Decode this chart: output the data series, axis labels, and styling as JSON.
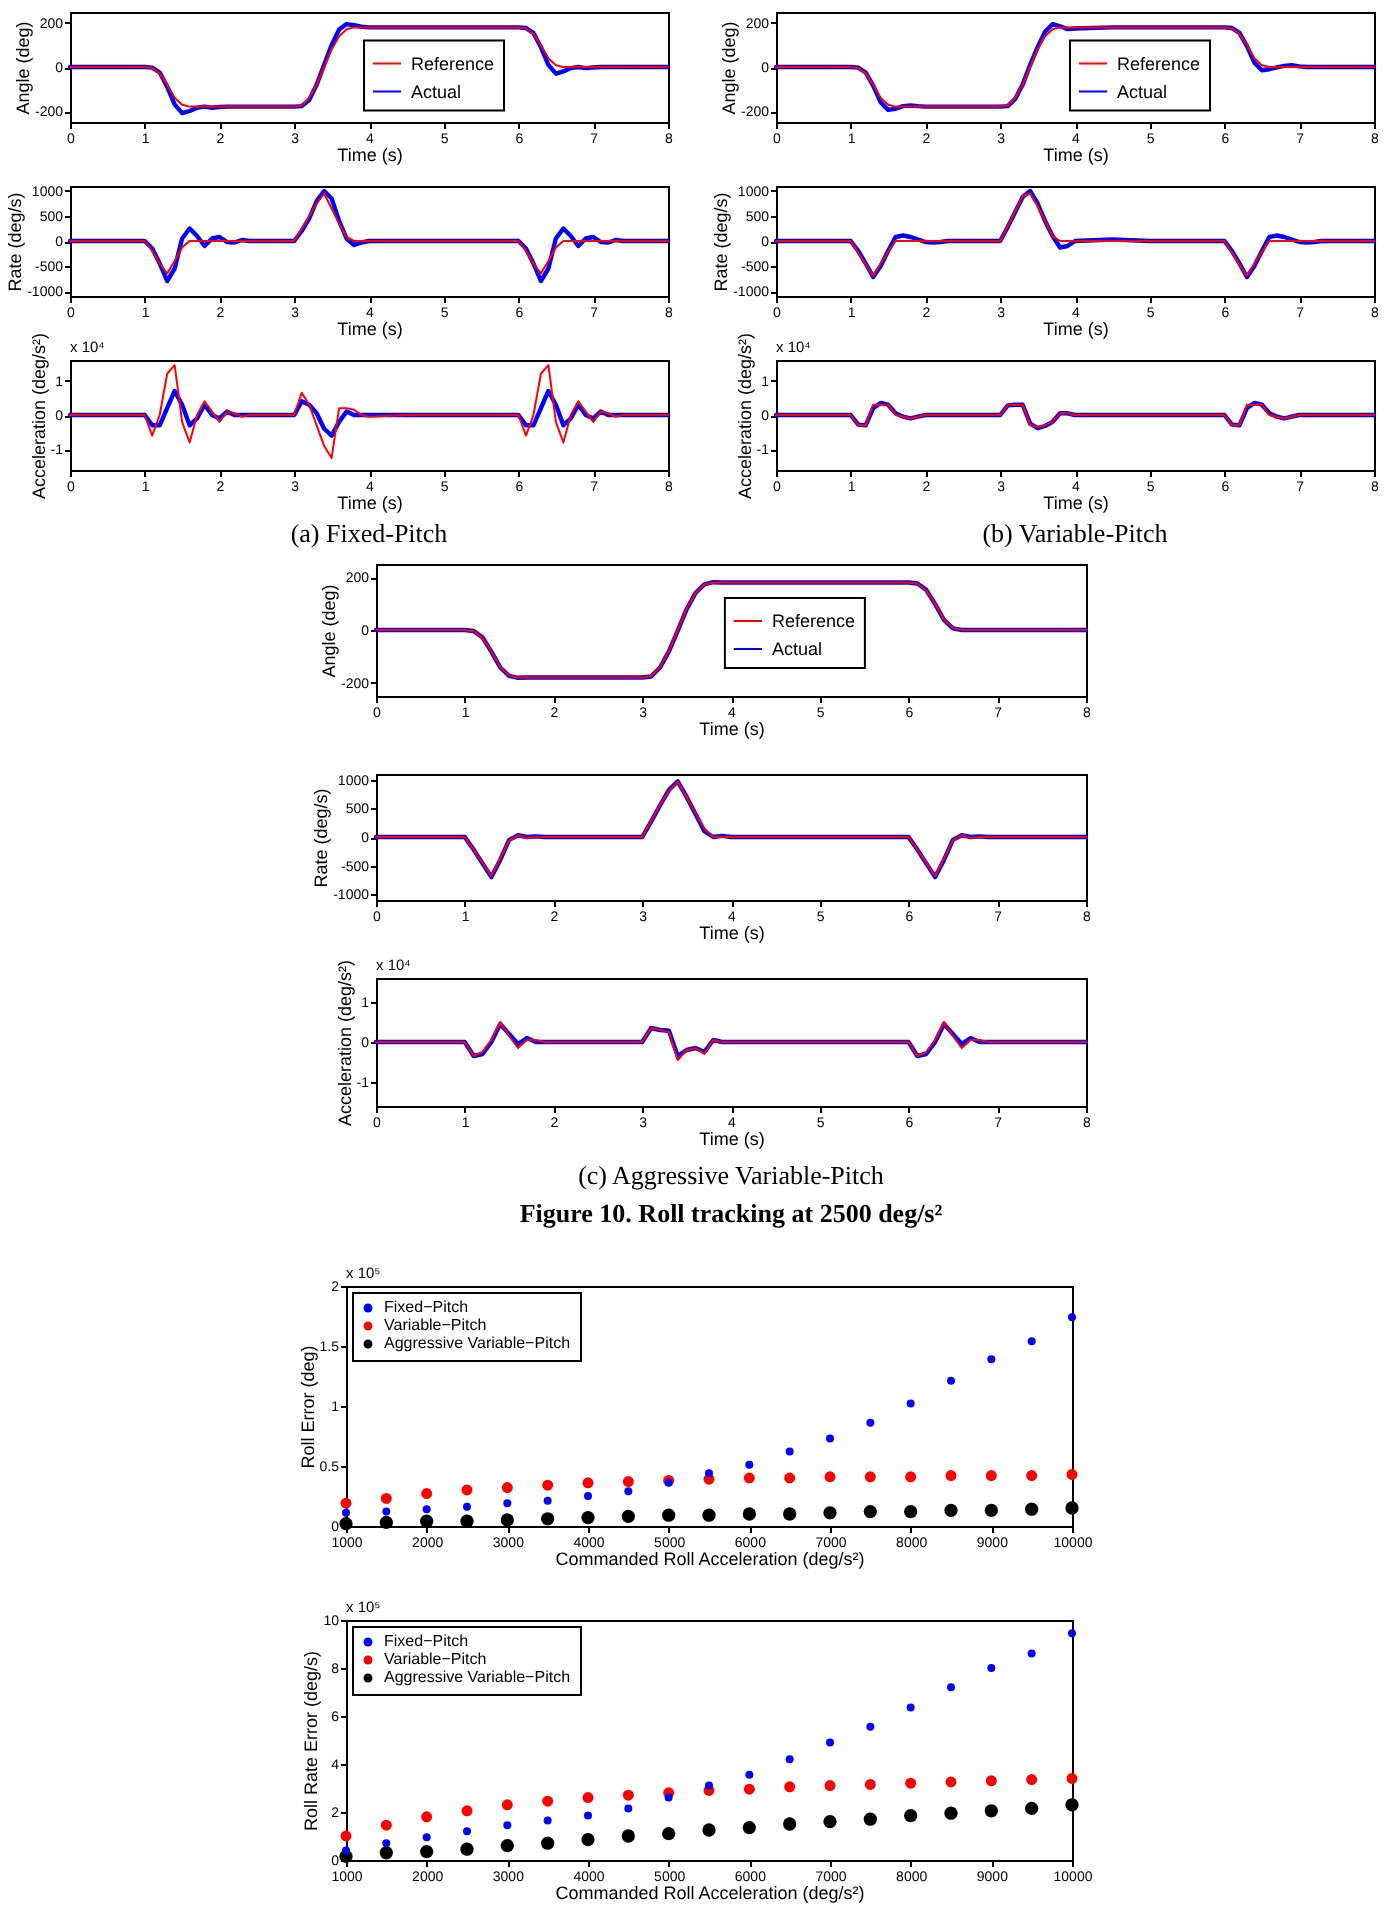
{
  "chart_data": [
    {
      "type": "line",
      "xlabel": "Time (s)",
      "ylabel": "Angle (deg)",
      "xlim": [
        0,
        8
      ],
      "xticks": [
        0,
        1,
        2,
        3,
        4,
        5,
        6,
        7,
        8
      ],
      "ylim": [
        -250,
        250
      ],
      "yticks": [
        -200,
        0,
        200
      ],
      "legend": "center",
      "line_style": "solid",
      "x": [
        0,
        0.5,
        1,
        1.1,
        1.2,
        1.3,
        1.4,
        1.5,
        1.6,
        1.7,
        1.8,
        1.9,
        2,
        2.1,
        2.2,
        2.3,
        2.4,
        2.5,
        2.6,
        2.7,
        2.8,
        2.9,
        3,
        3.1,
        3.2,
        3.3,
        3.4,
        3.5,
        3.6,
        3.7,
        3.8,
        3.9,
        4,
        4.5,
        5,
        5.5,
        6,
        6.1,
        6.2,
        6.3,
        6.4,
        6.5,
        6.6,
        6.7,
        6.8,
        6.9,
        7,
        7.1,
        7.2,
        7.3,
        7.4,
        7.5,
        8
      ],
      "series": [
        {
          "name": "Reference",
          "color": "#ff0000",
          "values": [
            0,
            0,
            0,
            -5,
            -30,
            -80,
            -140,
            -172,
            -180,
            -180,
            -180,
            -180,
            -180,
            -180,
            -180,
            -180,
            -180,
            -180,
            -180,
            -180,
            -180,
            -180,
            -180,
            -175,
            -140,
            -80,
            0,
            80,
            140,
            172,
            180,
            180,
            180,
            180,
            180,
            180,
            180,
            175,
            150,
            100,
            40,
            8,
            0,
            0,
            0,
            0,
            0,
            0,
            0,
            0,
            0,
            0,
            0
          ]
        },
        {
          "name": "Actual",
          "color": "#0000ff",
          "values": [
            0,
            0,
            0,
            -3,
            -25,
            -90,
            -170,
            -210,
            -200,
            -185,
            -180,
            -185,
            -182,
            -180,
            -180,
            -180,
            -180,
            -180,
            -180,
            -180,
            -180,
            -180,
            -180,
            -178,
            -150,
            -80,
            10,
            100,
            170,
            195,
            190,
            183,
            180,
            180,
            180,
            180,
            180,
            177,
            155,
            90,
            10,
            -30,
            -20,
            -5,
            0,
            -5,
            -2,
            0,
            0,
            0,
            0,
            0,
            0
          ]
        }
      ]
    },
    {
      "type": "line",
      "xlabel": "Time (s)",
      "ylabel": "Rate (deg/s)",
      "xlim": [
        0,
        8
      ],
      "xticks": [
        0,
        1,
        2,
        3,
        4,
        5,
        6,
        7,
        8
      ],
      "ylim": [
        -1100,
        1100
      ],
      "yticks": [
        -1000,
        -500,
        0,
        500,
        1000
      ],
      "line_style": "solid",
      "x": [
        0,
        0.5,
        1,
        1.1,
        1.2,
        1.3,
        1.4,
        1.5,
        1.6,
        1.7,
        1.8,
        1.9,
        2,
        2.1,
        2.2,
        2.3,
        2.4,
        2.5,
        2.6,
        2.7,
        2.8,
        2.9,
        3,
        3.1,
        3.2,
        3.3,
        3.4,
        3.5,
        3.6,
        3.7,
        3.8,
        3.9,
        4,
        4.5,
        5,
        5.5,
        6,
        6.1,
        6.2,
        6.3,
        6.4,
        6.5,
        6.6,
        6.7,
        6.8,
        6.9,
        7,
        7.1,
        7.2,
        7.3,
        7.4,
        7.5,
        8
      ],
      "series": [
        {
          "color": "#ff0000",
          "values": [
            0,
            0,
            0,
            -200,
            -450,
            -650,
            -400,
            -130,
            0,
            0,
            0,
            0,
            0,
            0,
            0,
            0,
            0,
            0,
            0,
            0,
            0,
            0,
            0,
            250,
            500,
            750,
            950,
            650,
            350,
            80,
            0,
            0,
            0,
            0,
            0,
            0,
            0,
            -200,
            -450,
            -650,
            -400,
            -130,
            0,
            0,
            0,
            0,
            0,
            0,
            0,
            0,
            0,
            0,
            0
          ]
        },
        {
          "color": "#0000ff",
          "values": [
            0,
            0,
            0,
            -150,
            -450,
            -800,
            -550,
            50,
            250,
            100,
            -100,
            50,
            80,
            -20,
            -30,
            20,
            0,
            0,
            0,
            0,
            0,
            0,
            0,
            200,
            450,
            800,
            1000,
            850,
            400,
            50,
            -80,
            -30,
            0,
            0,
            0,
            0,
            0,
            -150,
            -450,
            -800,
            -550,
            50,
            250,
            100,
            -100,
            50,
            80,
            -20,
            -30,
            20,
            0,
            0,
            0
          ]
        }
      ]
    },
    {
      "type": "line",
      "xlabel": "Time (s)",
      "ylabel": "Acceleration (deg/s²)",
      "xlim": [
        0,
        8
      ],
      "xticks": [
        0,
        1,
        2,
        3,
        4,
        5,
        6,
        7,
        8
      ],
      "ylim": [
        -1.6,
        1.6
      ],
      "yticks": [
        -1,
        0,
        1
      ],
      "line_style": "solid",
      "annotations": [
        "x 10⁴",
        "(a) Fixed-Pitch"
      ],
      "x": [
        0,
        0.5,
        1,
        1.1,
        1.2,
        1.3,
        1.4,
        1.5,
        1.6,
        1.7,
        1.8,
        1.9,
        2,
        2.1,
        2.2,
        2.3,
        2.4,
        2.5,
        2.6,
        2.7,
        2.8,
        2.9,
        3,
        3.1,
        3.2,
        3.3,
        3.4,
        3.5,
        3.6,
        3.7,
        3.8,
        3.9,
        4,
        4.5,
        5,
        5.5,
        6,
        6.1,
        6.2,
        6.3,
        6.4,
        6.5,
        6.6,
        6.7,
        6.8,
        6.9,
        7,
        7.1,
        7.2,
        7.3,
        7.4,
        7.5,
        8
      ],
      "series": [
        {
          "color": "#ff0000",
          "values": [
            0,
            0,
            0,
            -0.6,
            0,
            1.2,
            1.45,
            -0.2,
            -0.8,
            0,
            0.4,
            0.1,
            -0.2,
            0.1,
            0.05,
            -0.05,
            0,
            0,
            0,
            0,
            0,
            0,
            0,
            0.65,
            0.3,
            -0.3,
            -0.9,
            -1.25,
            0.2,
            0.2,
            0.15,
            0,
            -0.05,
            0,
            0,
            0,
            0,
            -0.6,
            0,
            1.2,
            1.45,
            -0.2,
            -0.8,
            0,
            0.4,
            0.1,
            -0.2,
            0.1,
            0.05,
            -0.05,
            0,
            0,
            0
          ]
        },
        {
          "color": "#0000ff",
          "values": [
            0,
            0,
            0,
            -0.3,
            -0.3,
            0.2,
            0.7,
            0.3,
            -0.3,
            -0.1,
            0.3,
            0,
            -0.1,
            0.1,
            0,
            0,
            0,
            0,
            0,
            0,
            0,
            0,
            0,
            0.4,
            0.3,
            0.05,
            -0.4,
            -0.6,
            -0.2,
            0.1,
            0,
            0,
            0,
            0,
            0,
            0,
            0,
            -0.3,
            -0.3,
            0.2,
            0.7,
            0.3,
            -0.3,
            -0.1,
            0.3,
            0,
            -0.1,
            0.1,
            0,
            0,
            0,
            0,
            0
          ]
        }
      ]
    },
    {
      "type": "line",
      "xlabel": "Time (s)",
      "ylabel": "Angle (deg)",
      "xlim": [
        0,
        8
      ],
      "xticks": [
        0,
        1,
        2,
        3,
        4,
        5,
        6,
        7,
        8
      ],
      "ylim": [
        -250,
        250
      ],
      "yticks": [
        -200,
        0,
        200
      ],
      "legend": "center",
      "line_style": "solid",
      "x": [
        0,
        0.5,
        1,
        1.1,
        1.2,
        1.3,
        1.4,
        1.5,
        1.6,
        1.7,
        1.8,
        1.9,
        2,
        2.1,
        2.2,
        2.3,
        2.4,
        2.5,
        2.6,
        2.7,
        2.8,
        2.9,
        3,
        3.1,
        3.2,
        3.3,
        3.4,
        3.5,
        3.6,
        3.7,
        3.8,
        3.9,
        4,
        4.5,
        5,
        5.5,
        6,
        6.1,
        6.2,
        6.3,
        6.4,
        6.5,
        6.6,
        6.7,
        6.8,
        6.9,
        7,
        7.1,
        7.2,
        7.3,
        7.4,
        7.5,
        8
      ],
      "series": [
        {
          "name": "Reference",
          "color": "#ff0000",
          "values": [
            0,
            0,
            0,
            -5,
            -30,
            -80,
            -140,
            -172,
            -180,
            -180,
            -180,
            -180,
            -180,
            -180,
            -180,
            -180,
            -180,
            -180,
            -180,
            -180,
            -180,
            -180,
            -180,
            -175,
            -140,
            -80,
            0,
            80,
            140,
            172,
            180,
            180,
            180,
            180,
            180,
            180,
            180,
            175,
            150,
            100,
            40,
            8,
            0,
            0,
            0,
            0,
            0,
            0,
            0,
            0,
            0,
            0,
            0
          ]
        },
        {
          "name": "Actual",
          "color": "#0000ff",
          "values": [
            0,
            0,
            0,
            -3,
            -25,
            -85,
            -160,
            -195,
            -190,
            -178,
            -175,
            -178,
            -180,
            -180,
            -180,
            -180,
            -180,
            -180,
            -180,
            -180,
            -180,
            -180,
            -180,
            -178,
            -145,
            -80,
            10,
            90,
            160,
            195,
            185,
            172,
            175,
            180,
            180,
            180,
            180,
            177,
            155,
            95,
            20,
            -15,
            -10,
            -2,
            5,
            8,
            3,
            0,
            0,
            0,
            0,
            0,
            0
          ]
        }
      ]
    },
    {
      "type": "line",
      "xlabel": "Time (s)",
      "ylabel": "Rate (deg/s)",
      "xlim": [
        0,
        8
      ],
      "xticks": [
        0,
        1,
        2,
        3,
        4,
        5,
        6,
        7,
        8
      ],
      "ylim": [
        -1100,
        1100
      ],
      "yticks": [
        -1000,
        -500,
        0,
        500,
        1000
      ],
      "line_style": "solid",
      "x": [
        0,
        0.5,
        1,
        1.1,
        1.2,
        1.3,
        1.4,
        1.5,
        1.6,
        1.7,
        1.8,
        1.9,
        2,
        2.1,
        2.2,
        2.3,
        2.4,
        2.5,
        2.6,
        2.7,
        2.8,
        2.9,
        3,
        3.1,
        3.2,
        3.3,
        3.4,
        3.5,
        3.6,
        3.7,
        3.8,
        3.9,
        4,
        4.5,
        5,
        5.5,
        6,
        6.1,
        6.2,
        6.3,
        6.4,
        6.5,
        6.6,
        6.7,
        6.8,
        6.9,
        7,
        7.1,
        7.2,
        7.3,
        7.4,
        7.5,
        8
      ],
      "series": [
        {
          "color": "#ff0000",
          "values": [
            0,
            0,
            0,
            -230,
            -470,
            -700,
            -450,
            -220,
            0,
            0,
            0,
            0,
            0,
            0,
            0,
            0,
            0,
            0,
            0,
            0,
            0,
            0,
            0,
            300,
            600,
            900,
            950,
            700,
            400,
            100,
            0,
            0,
            0,
            0,
            0,
            0,
            0,
            -230,
            -470,
            -700,
            -450,
            -220,
            0,
            0,
            0,
            0,
            0,
            0,
            0,
            0,
            0,
            0,
            0
          ]
        },
        {
          "color": "#0000ff",
          "values": [
            0,
            0,
            0,
            -200,
            -450,
            -720,
            -500,
            -200,
            80,
            110,
            80,
            30,
            -20,
            -30,
            -20,
            0,
            0,
            0,
            0,
            0,
            0,
            0,
            0,
            280,
            580,
            880,
            1000,
            750,
            400,
            100,
            -130,
            -100,
            0,
            30,
            0,
            0,
            0,
            -200,
            -450,
            -720,
            -500,
            -200,
            80,
            110,
            80,
            30,
            -20,
            -30,
            -20,
            0,
            0,
            0,
            0
          ]
        }
      ]
    },
    {
      "type": "line",
      "xlabel": "Time (s)",
      "ylabel": "Acceleration (deg/s²)",
      "xlim": [
        0,
        8
      ],
      "xticks": [
        0,
        1,
        2,
        3,
        4,
        5,
        6,
        7,
        8
      ],
      "ylim": [
        -1.6,
        1.6
      ],
      "yticks": [
        -1,
        0,
        1
      ],
      "line_style": "solid",
      "annotations": [
        "x 10⁴",
        "(b) Variable-Pitch"
      ],
      "x": [
        0,
        0.5,
        1,
        1.1,
        1.2,
        1.3,
        1.4,
        1.5,
        1.6,
        1.7,
        1.8,
        1.9,
        2,
        2.1,
        2.2,
        2.3,
        2.4,
        2.5,
        2.6,
        2.7,
        2.8,
        2.9,
        3,
        3.1,
        3.2,
        3.3,
        3.4,
        3.5,
        3.6,
        3.7,
        3.8,
        3.9,
        4,
        4.5,
        5,
        5.5,
        6,
        6.1,
        6.2,
        6.3,
        6.4,
        6.5,
        6.6,
        6.7,
        6.8,
        6.9,
        7,
        7.1,
        7.2,
        7.3,
        7.4,
        7.5,
        8
      ],
      "series": [
        {
          "color": "#ff0000",
          "values": [
            0,
            0,
            0,
            -0.3,
            -0.3,
            0.3,
            0.3,
            0.3,
            0,
            -0.05,
            -0.1,
            -0.05,
            0,
            0,
            0,
            0,
            0,
            0,
            0,
            0,
            0,
            0,
            0,
            0.3,
            0.3,
            0.3,
            -0.3,
            -0.35,
            -0.3,
            -0.2,
            0.05,
            0.05,
            0,
            0,
            0,
            0,
            0,
            -0.3,
            -0.3,
            0.3,
            0.3,
            0.3,
            0,
            -0.05,
            -0.1,
            -0.05,
            0,
            0,
            0,
            0,
            0,
            0,
            0
          ]
        },
        {
          "color": "#0000ff",
          "values": [
            0,
            0,
            0,
            -0.28,
            -0.3,
            0.2,
            0.35,
            0.3,
            0.05,
            -0.05,
            -0.1,
            -0.05,
            0,
            0,
            0,
            0,
            0,
            0,
            0,
            0,
            0,
            0,
            0,
            0.28,
            0.3,
            0.3,
            -0.25,
            -0.38,
            -0.32,
            -0.2,
            0.05,
            0.05,
            0,
            0,
            0,
            0,
            0,
            -0.28,
            -0.3,
            0.2,
            0.35,
            0.3,
            0.05,
            -0.05,
            -0.1,
            -0.05,
            0,
            0,
            0,
            0,
            0,
            0,
            0
          ]
        }
      ]
    },
    {
      "type": "line",
      "xlabel": "Time (s)",
      "ylabel": "Angle (deg)",
      "xlim": [
        0,
        8
      ],
      "xticks": [
        0,
        1,
        2,
        3,
        4,
        5,
        6,
        7,
        8
      ],
      "ylim": [
        -250,
        250
      ],
      "yticks": [
        -200,
        0,
        200
      ],
      "legend": "center",
      "line_style": "solid",
      "x": [
        0,
        0.5,
        1,
        1.1,
        1.2,
        1.3,
        1.4,
        1.5,
        1.6,
        1.7,
        1.8,
        1.9,
        2,
        2.1,
        2.2,
        2.3,
        2.4,
        2.5,
        2.6,
        2.7,
        2.8,
        2.9,
        3,
        3.1,
        3.2,
        3.3,
        3.4,
        3.5,
        3.6,
        3.7,
        3.8,
        3.9,
        4,
        4.5,
        5,
        5.5,
        6,
        6.1,
        6.2,
        6.3,
        6.4,
        6.5,
        6.6,
        6.7,
        6.8,
        6.9,
        7,
        7.1,
        7.2,
        7.3,
        7.4,
        7.5,
        8
      ],
      "series": [
        {
          "name": "Reference",
          "color": "#ff0000",
          "values": [
            0,
            0,
            0,
            -5,
            -30,
            -80,
            -140,
            -172,
            -180,
            -180,
            -180,
            -180,
            -180,
            -180,
            -180,
            -180,
            -180,
            -180,
            -180,
            -180,
            -180,
            -180,
            -180,
            -175,
            -140,
            -80,
            0,
            80,
            140,
            172,
            180,
            180,
            180,
            180,
            180,
            180,
            180,
            175,
            150,
            100,
            40,
            8,
            0,
            0,
            0,
            0,
            0,
            0,
            0,
            0,
            0,
            0,
            0
          ]
        },
        {
          "name": "Actual",
          "color": "#0000ff",
          "values": [
            0,
            0,
            0,
            -4,
            -28,
            -82,
            -142,
            -174,
            -181,
            -180,
            -180,
            -180,
            -180,
            -180,
            -180,
            -180,
            -180,
            -180,
            -180,
            -180,
            -180,
            -180,
            -180,
            -176,
            -142,
            -82,
            -2,
            78,
            140,
            173,
            181,
            180,
            180,
            180,
            180,
            180,
            180,
            176,
            152,
            98,
            38,
            6,
            0,
            0,
            0,
            0,
            0,
            0,
            0,
            0,
            0,
            0,
            0
          ]
        }
      ]
    },
    {
      "type": "line",
      "xlabel": "Time (s)",
      "ylabel": "Rate (deg/s)",
      "xlim": [
        0,
        8
      ],
      "xticks": [
        0,
        1,
        2,
        3,
        4,
        5,
        6,
        7,
        8
      ],
      "ylim": [
        -1100,
        1100
      ],
      "yticks": [
        -1000,
        -500,
        0,
        500,
        1000
      ],
      "line_style": "solid",
      "x": [
        0,
        0.5,
        1,
        1.1,
        1.2,
        1.3,
        1.4,
        1.5,
        1.6,
        1.7,
        1.8,
        1.9,
        2,
        2.1,
        2.2,
        2.3,
        2.4,
        2.5,
        2.6,
        2.7,
        2.8,
        2.9,
        3,
        3.1,
        3.2,
        3.3,
        3.4,
        3.5,
        3.6,
        3.7,
        3.8,
        3.9,
        4,
        4.5,
        5,
        5.5,
        6,
        6.1,
        6.2,
        6.3,
        6.4,
        6.5,
        6.6,
        6.7,
        6.8,
        6.9,
        7,
        7.1,
        7.2,
        7.3,
        7.4,
        7.5,
        8
      ],
      "series": [
        {
          "color": "#ff0000",
          "values": [
            0,
            0,
            0,
            -220,
            -450,
            -680,
            -380,
            -60,
            30,
            -20,
            0,
            0,
            0,
            0,
            0,
            0,
            0,
            0,
            0,
            0,
            0,
            0,
            0,
            280,
            560,
            800,
            960,
            700,
            420,
            150,
            0,
            0,
            0,
            0,
            0,
            0,
            0,
            -220,
            -450,
            -680,
            -380,
            -60,
            30,
            -20,
            0,
            0,
            0,
            0,
            0,
            0,
            0,
            0,
            0
          ]
        },
        {
          "color": "#0000ff",
          "values": [
            0,
            0,
            0,
            -220,
            -460,
            -700,
            -400,
            -50,
            30,
            0,
            10,
            0,
            0,
            0,
            0,
            0,
            0,
            0,
            0,
            0,
            0,
            0,
            0,
            270,
            550,
            820,
            970,
            700,
            400,
            100,
            0,
            20,
            0,
            0,
            0,
            0,
            0,
            -220,
            -460,
            -700,
            -400,
            -50,
            30,
            0,
            10,
            0,
            0,
            0,
            0,
            0,
            0,
            0,
            0
          ]
        }
      ]
    },
    {
      "type": "line",
      "xlabel": "Time (s)",
      "ylabel": "Acceleration (deg/s²)",
      "xlim": [
        0,
        8
      ],
      "xticks": [
        0,
        1,
        2,
        3,
        4,
        5,
        6,
        7,
        8
      ],
      "ylim": [
        -1.6,
        1.6
      ],
      "yticks": [
        -1,
        0,
        1
      ],
      "line_style": "solid",
      "annotations": [
        "x 10⁴",
        "(c) Aggressive Variable-Pitch",
        "Figure 10.  Roll tracking at 2500 deg/s²"
      ],
      "x": [
        0,
        0.5,
        1,
        1.1,
        1.2,
        1.3,
        1.4,
        1.5,
        1.6,
        1.7,
        1.8,
        1.9,
        2,
        2.1,
        2.2,
        2.3,
        2.4,
        2.5,
        2.6,
        2.7,
        2.8,
        2.9,
        3,
        3.1,
        3.2,
        3.3,
        3.4,
        3.5,
        3.6,
        3.7,
        3.8,
        3.9,
        4,
        4.5,
        5,
        5.5,
        6,
        6.1,
        6.2,
        6.3,
        6.4,
        6.5,
        6.6,
        6.7,
        6.8,
        6.9,
        7,
        7.1,
        7.2,
        7.3,
        7.4,
        7.5,
        8
      ],
      "series": [
        {
          "color": "#ff0000",
          "values": [
            0,
            0,
            0,
            -0.35,
            -0.25,
            0.05,
            0.5,
            0.15,
            -0.15,
            0.05,
            0.05,
            0,
            0,
            0,
            0,
            0,
            0,
            0,
            0,
            0,
            0,
            0,
            0,
            0.35,
            0.3,
            0.25,
            -0.45,
            -0.2,
            -0.15,
            -0.3,
            0.05,
            0,
            0,
            0,
            0,
            0,
            0,
            -0.35,
            -0.25,
            0.05,
            0.5,
            0.15,
            -0.15,
            0.05,
            0.05,
            0,
            0,
            0,
            0,
            0,
            0,
            0,
            0
          ]
        },
        {
          "color": "#0000ff",
          "values": [
            0,
            0,
            0,
            -0.35,
            -0.3,
            0,
            0.45,
            0.2,
            -0.05,
            0.1,
            0,
            0,
            0,
            0,
            0,
            0,
            0,
            0,
            0,
            0,
            0,
            0,
            0,
            0.35,
            0.3,
            0.28,
            -0.35,
            -0.2,
            -0.15,
            -0.25,
            0.05,
            0,
            0,
            0,
            0,
            0,
            0,
            -0.35,
            -0.3,
            0,
            0.45,
            0.2,
            -0.05,
            0.1,
            0,
            0,
            0,
            0,
            0,
            0,
            0,
            0,
            0
          ]
        }
      ]
    },
    {
      "type": "scatter",
      "xlabel": "Commanded Roll Acceleration (deg/s²)",
      "ylabel": "Roll Error (deg)",
      "xlim": [
        1000,
        10000
      ],
      "xticks": [
        1000,
        2000,
        3000,
        4000,
        5000,
        6000,
        7000,
        8000,
        9000,
        10000
      ],
      "ylim": [
        0,
        2
      ],
      "yticks": [
        0,
        0.5,
        1,
        1.5,
        2
      ],
      "legend": "top left",
      "marker": "circle",
      "annotations": [
        "x 10⁵"
      ],
      "x": [
        1000,
        1500,
        2000,
        2500,
        3000,
        3500,
        4000,
        4500,
        5000,
        5500,
        6000,
        6500,
        7000,
        7500,
        8000,
        8500,
        9000,
        9500,
        10000
      ],
      "series": [
        {
          "name": "Fixed−Pitch",
          "color": "#0000ff",
          "values": [
            0.11,
            0.12,
            0.14,
            0.16,
            0.19,
            0.21,
            0.25,
            0.29,
            0.36,
            0.44,
            0.51,
            0.62,
            0.73,
            0.86,
            1.02,
            1.21,
            1.39,
            1.54,
            1.74
          ]
        },
        {
          "name": "Variable−Pitch",
          "color": "#ff0000",
          "values": [
            0.19,
            0.23,
            0.27,
            0.3,
            0.32,
            0.34,
            0.36,
            0.37,
            0.38,
            0.39,
            0.4,
            0.4,
            0.41,
            0.41,
            0.41,
            0.42,
            0.42,
            0.42,
            0.43
          ]
        },
        {
          "name": "Aggressive Variable−Pitch",
          "color": "#000000",
          "values": [
            0.02,
            0.03,
            0.04,
            0.04,
            0.05,
            0.06,
            0.07,
            0.08,
            0.09,
            0.09,
            0.1,
            0.1,
            0.11,
            0.12,
            0.12,
            0.13,
            0.13,
            0.14,
            0.15
          ]
        }
      ]
    },
    {
      "type": "scatter",
      "xlabel": "Commanded Roll Acceleration (deg/s²)",
      "ylabel": "Roll Rate Error (deg/s)",
      "xlim": [
        1000,
        10000
      ],
      "xticks": [
        1000,
        2000,
        3000,
        4000,
        5000,
        6000,
        7000,
        8000,
        9000,
        10000
      ],
      "ylim": [
        0,
        10
      ],
      "yticks": [
        0,
        2,
        4,
        6,
        8,
        10
      ],
      "legend": "top left",
      "marker": "circle",
      "annotations": [
        "x 10⁵"
      ],
      "x": [
        1000,
        1500,
        2000,
        2500,
        3000,
        3500,
        4000,
        4500,
        5000,
        5500,
        6000,
        6500,
        7000,
        7500,
        8000,
        8500,
        9000,
        9500,
        10000
      ],
      "series": [
        {
          "name": "Fixed−Pitch",
          "color": "#0000ff",
          "values": [
            0.4,
            0.7,
            0.95,
            1.2,
            1.45,
            1.65,
            1.85,
            2.15,
            2.6,
            3.1,
            3.55,
            4.2,
            4.9,
            5.55,
            6.35,
            7.2,
            8,
            8.6,
            9.45
          ]
        },
        {
          "name": "Variable−Pitch",
          "color": "#ff0000",
          "values": [
            1,
            1.45,
            1.8,
            2.05,
            2.3,
            2.45,
            2.6,
            2.7,
            2.8,
            2.9,
            2.95,
            3.05,
            3.1,
            3.15,
            3.2,
            3.25,
            3.3,
            3.35,
            3.4
          ]
        },
        {
          "name": "Aggressive Variable−Pitch",
          "color": "#000000",
          "values": [
            0.15,
            0.3,
            0.35,
            0.45,
            0.6,
            0.7,
            0.85,
            1,
            1.1,
            1.25,
            1.35,
            1.5,
            1.6,
            1.7,
            1.85,
            1.95,
            2.05,
            2.15,
            2.3
          ]
        }
      ]
    }
  ]
}
